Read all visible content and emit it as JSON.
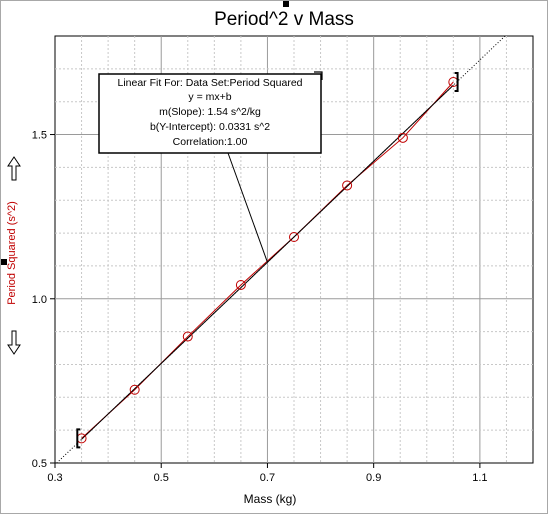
{
  "chart_data": {
    "type": "scatter",
    "title": "Period^2 v Mass",
    "xlabel": "Mass (kg)",
    "ylabel": "Period Squared (s^2)",
    "xlim": [
      0.3,
      1.2
    ],
    "ylim": [
      0.5,
      1.8
    ],
    "xticks": [
      "0.3",
      "0.5",
      "0.7",
      "0.9",
      "1.1"
    ],
    "xtick_values": [
      0.3,
      0.5,
      0.7,
      0.9,
      1.1
    ],
    "yticks": [
      "0.5",
      "1.0",
      "1.5"
    ],
    "ytick_values": [
      0.5,
      1.0,
      1.5
    ],
    "grid": true,
    "series": [
      {
        "name": "Period Squared",
        "x": [
          0.35,
          0.45,
          0.55,
          0.65,
          0.75,
          0.85,
          0.955,
          1.05
        ],
        "y": [
          0.575,
          0.723,
          0.885,
          1.042,
          1.188,
          1.345,
          1.49,
          1.66
        ],
        "marker": "circle",
        "color": "#c00000"
      }
    ],
    "fit": {
      "slope": 1.54,
      "intercept": 0.0331,
      "color": "#000000",
      "extrapolation": "dotted"
    },
    "fit_range": [
      0.35,
      1.05
    ],
    "annotation": {
      "line1": "Linear Fit For:  Data Set:Period Squared",
      "line2": "y = mx+b",
      "line3": "m(Slope): 1.54 s^2/kg",
      "line4": "b(Y-Intercept): 0.0331 s^2",
      "line5": "Correlation:1.00"
    }
  },
  "colors": {
    "data": "#c00000",
    "fit": "#000000",
    "grid": "#c8c8c8",
    "ylabel": "#c00000"
  },
  "icons": {
    "scroll_up": "hollow-up-arrow-icon",
    "scroll_down": "hollow-down-arrow-icon"
  }
}
